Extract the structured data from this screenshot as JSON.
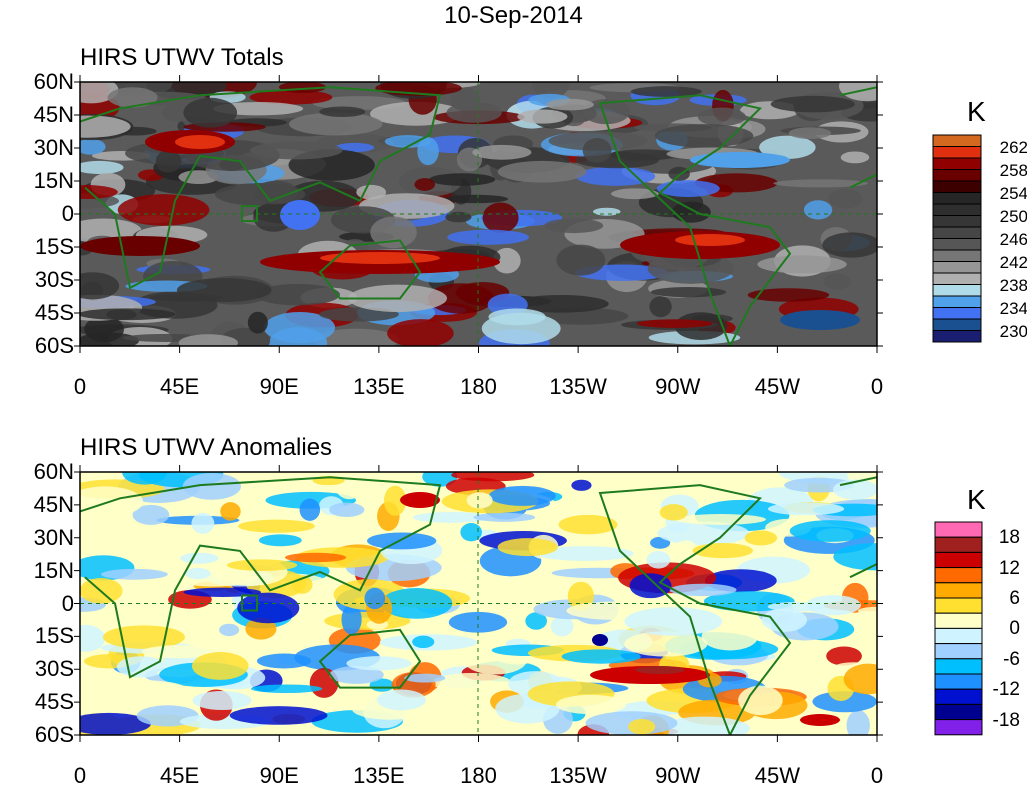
{
  "title": "10-Sep-2014",
  "panels": [
    {
      "title": "HIRS UTWV Totals",
      "unit": "K",
      "colorbar": {
        "labels": [
          "262",
          "258",
          "254",
          "250",
          "246",
          "242",
          "238",
          "234",
          "230"
        ],
        "colors": [
          "#d2691e",
          "#e0300f",
          "#900000",
          "#680000",
          "#3c0000",
          "#262626",
          "#2e2e2e",
          "#363636",
          "#464646",
          "#565656",
          "#767676",
          "#969696",
          "#b0b0b0",
          "#b0dcea",
          "#50a0ea",
          "#4272f2",
          "#1a5090",
          "#1a1e70"
        ]
      }
    },
    {
      "title": "HIRS UTWV Anomalies",
      "unit": "K",
      "colorbar": {
        "labels": [
          "18",
          "12",
          "6",
          "0",
          "-6",
          "-12",
          "-18"
        ],
        "colors": [
          "#ff69b4",
          "#a02020",
          "#cc0000",
          "#ff6a00",
          "#ffaa00",
          "#ffe030",
          "#ffffc8",
          "#d0f4ff",
          "#a0d0ff",
          "#00bfff",
          "#1e90ff",
          "#0010d0",
          "#000090",
          "#8020e8"
        ]
      }
    }
  ],
  "lat_labels": [
    "60N",
    "45N",
    "30N",
    "15N",
    "0",
    "15S",
    "30S",
    "45S",
    "60S"
  ],
  "lon_labels": [
    "0",
    "45E",
    "90E",
    "135E",
    "180",
    "135W",
    "90W",
    "45W",
    "0"
  ]
}
